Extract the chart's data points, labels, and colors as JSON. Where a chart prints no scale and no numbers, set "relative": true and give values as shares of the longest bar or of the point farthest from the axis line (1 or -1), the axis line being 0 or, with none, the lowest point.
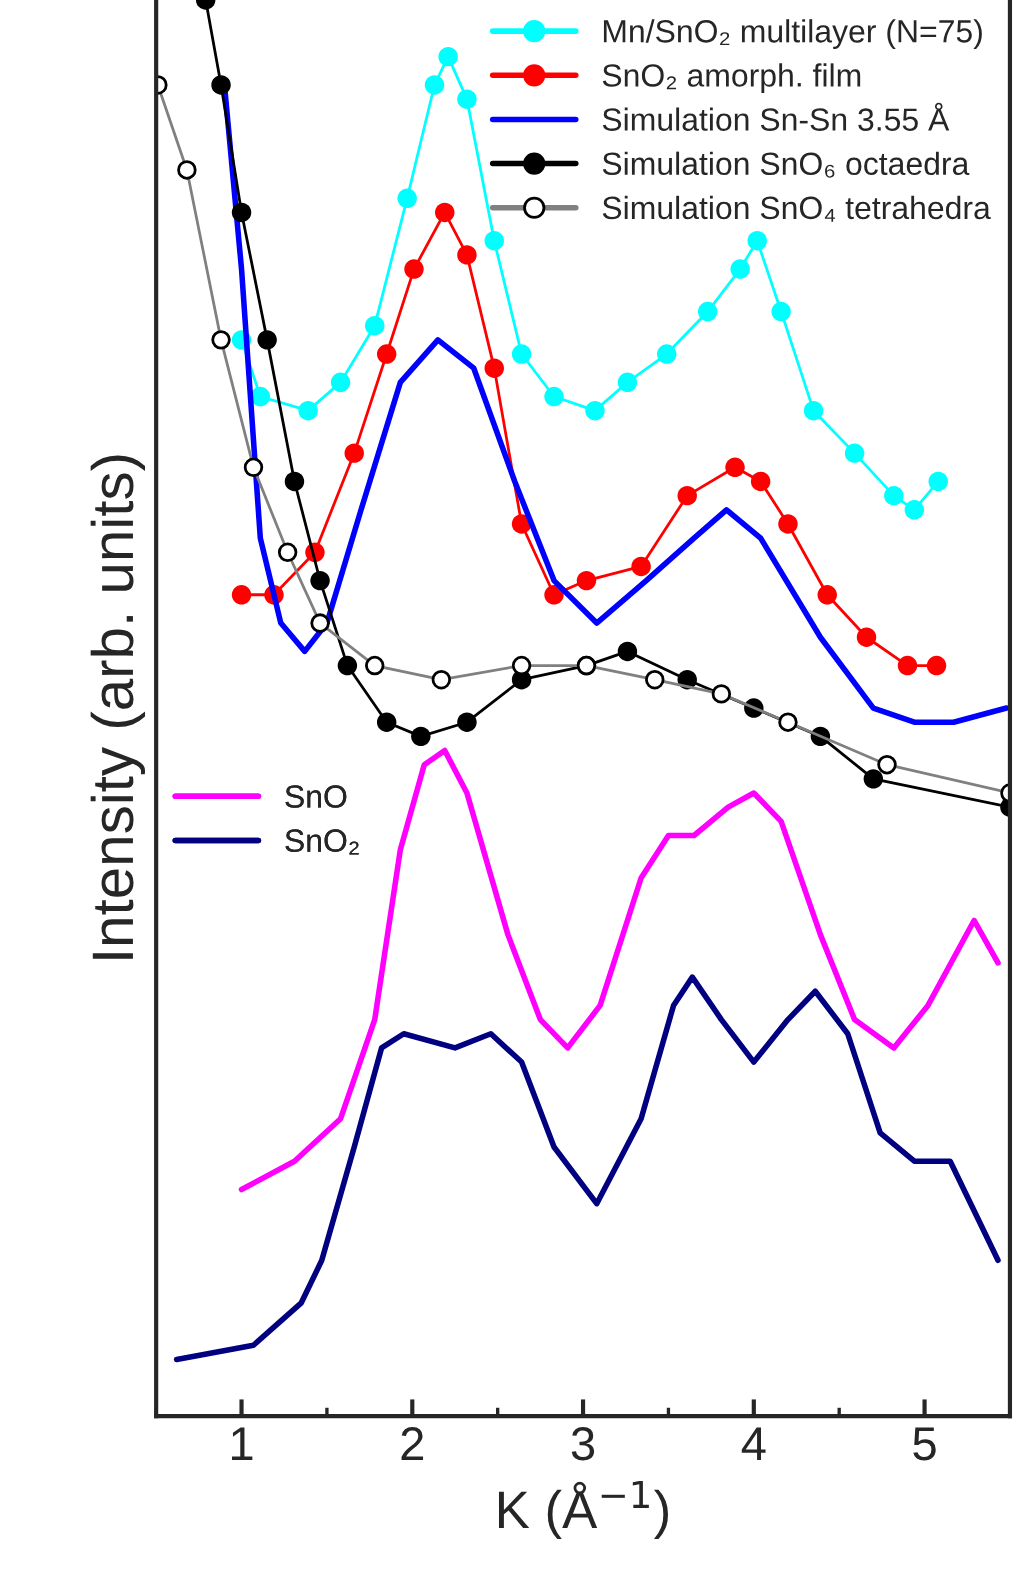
{
  "chart_data": {
    "type": "line",
    "relative": true,
    "xlabel": "K (Å$^{−1}$)",
    "ylabel": "Intensity (arb. units)",
    "xlim": [
      0.5,
      5.5
    ],
    "xticks": [
      1,
      2,
      3,
      4,
      5
    ],
    "legend": "top right",
    "series": [
      {
        "name": "Mn/SnO₂ multilayer (N=75)",
        "color": "#00ffff",
        "marker": "circle",
        "x": [
          1.0,
          1.11,
          1.39,
          1.58,
          1.78,
          1.97,
          2.13,
          2.21,
          2.32,
          2.48,
          2.64,
          2.83,
          3.07,
          3.26,
          3.49,
          3.73,
          3.92,
          4.02,
          4.16,
          4.35,
          4.59,
          4.82,
          4.94,
          5.08
        ],
        "values": [
          0.76,
          0.72,
          0.71,
          0.73,
          0.77,
          0.86,
          0.94,
          0.96,
          0.93,
          0.83,
          0.75,
          0.72,
          0.71,
          0.73,
          0.75,
          0.78,
          0.81,
          0.83,
          0.78,
          0.71,
          0.68,
          0.65,
          0.64,
          0.66
        ]
      },
      {
        "name": "SnO₂ amorph. film",
        "color": "#ff0000",
        "marker": "circle",
        "x": [
          1.0,
          1.19,
          1.43,
          1.66,
          1.85,
          2.01,
          2.19,
          2.32,
          2.48,
          2.64,
          2.83,
          3.02,
          3.34,
          3.61,
          3.89,
          4.04,
          4.2,
          4.43,
          4.66,
          4.9,
          5.07
        ],
        "values": [
          0.58,
          0.58,
          0.61,
          0.68,
          0.75,
          0.81,
          0.85,
          0.82,
          0.74,
          0.63,
          0.58,
          0.59,
          0.6,
          0.65,
          0.67,
          0.66,
          0.63,
          0.58,
          0.55,
          0.53,
          0.53
        ]
      },
      {
        "name": "Simulation Sn-Sn 3.55 Å",
        "color": "#0000ff",
        "marker": "none",
        "x": [
          0.9,
          1.0,
          1.11,
          1.23,
          1.37,
          1.5,
          1.7,
          1.93,
          2.15,
          2.36,
          2.6,
          2.83,
          3.08,
          3.37,
          3.65,
          3.84,
          4.04,
          4.39,
          4.7,
          4.94,
          5.17,
          5.48
        ],
        "values": [
          0.94,
          0.81,
          0.62,
          0.56,
          0.54,
          0.56,
          0.64,
          0.73,
          0.76,
          0.74,
          0.66,
          0.59,
          0.56,
          0.59,
          0.62,
          0.64,
          0.62,
          0.55,
          0.5,
          0.49,
          0.49,
          0.5
        ]
      },
      {
        "name": "Simulation SnO₆ octaedra",
        "color": "#000000",
        "marker": "circle",
        "x": [
          0.79,
          0.88,
          1.0,
          1.15,
          1.31,
          1.46,
          1.62,
          1.85,
          2.05,
          2.32,
          2.64,
          3.02,
          3.26,
          3.61,
          4.0,
          4.39,
          4.7,
          5.5
        ],
        "values": [
          1.0,
          0.94,
          0.85,
          0.76,
          0.66,
          0.59,
          0.53,
          0.49,
          0.48,
          0.49,
          0.52,
          0.53,
          0.54,
          0.52,
          0.5,
          0.48,
          0.45,
          0.43
        ]
      },
      {
        "name": "Simulation SnO₄ tetrahedra",
        "color": "#000000",
        "marker": "circle",
        "x": [
          0.51,
          0.68,
          0.88,
          1.07,
          1.27,
          1.46,
          1.78,
          2.17,
          2.64,
          3.02,
          3.42,
          3.81,
          4.2,
          4.78,
          5.5
        ],
        "values": [
          0.94,
          0.88,
          0.76,
          0.67,
          0.61,
          0.56,
          0.53,
          0.52,
          0.53,
          0.53,
          0.52,
          0.51,
          0.49,
          0.46,
          0.44
        ]
      },
      {
        "name": "SnO",
        "color": "#ff00ff",
        "marker": "none",
        "x": [
          1.0,
          1.31,
          1.58,
          1.78,
          1.93,
          2.07,
          2.19,
          2.32,
          2.56,
          2.75,
          2.91,
          3.1,
          3.34,
          3.5,
          3.65,
          3.85,
          4.0,
          4.16,
          4.39,
          4.59,
          4.82,
          5.02,
          5.29,
          5.43
        ],
        "values": [
          0.16,
          0.18,
          0.21,
          0.28,
          0.4,
          0.46,
          0.47,
          0.44,
          0.34,
          0.28,
          0.26,
          0.29,
          0.38,
          0.41,
          0.41,
          0.43,
          0.44,
          0.42,
          0.34,
          0.28,
          0.26,
          0.29,
          0.35,
          0.32
        ]
      },
      {
        "name": "SnO₂",
        "color": "#000080",
        "marker": "none",
        "x": [
          0.62,
          1.07,
          1.35,
          1.47,
          1.66,
          1.82,
          1.95,
          2.25,
          2.46,
          2.64,
          2.83,
          3.08,
          3.34,
          3.53,
          3.64,
          3.81,
          4.0,
          4.2,
          4.36,
          4.55,
          4.74,
          4.94,
          5.15,
          5.43
        ],
        "values": [
          0.04,
          0.05,
          0.08,
          0.11,
          0.19,
          0.26,
          0.27,
          0.26,
          0.27,
          0.25,
          0.19,
          0.15,
          0.21,
          0.29,
          0.31,
          0.28,
          0.25,
          0.28,
          0.3,
          0.27,
          0.2,
          0.18,
          0.18,
          0.11
        ]
      }
    ]
  }
}
